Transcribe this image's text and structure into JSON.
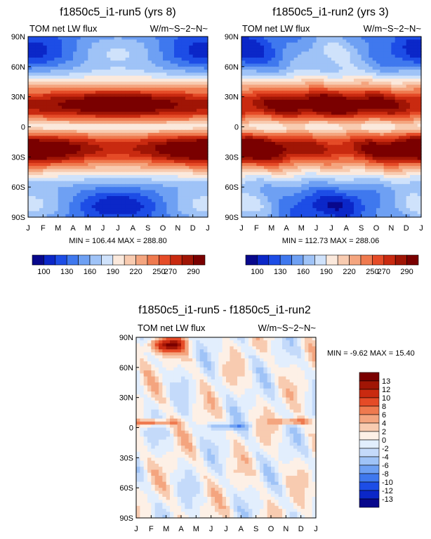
{
  "chart_data": [
    {
      "type": "heatmap",
      "title": "f1850c5_i1-run5 (yrs 8)",
      "left_label": "TOM net LW flux",
      "right_label": "W/m~S~2~N~",
      "x_ticks": [
        "J",
        "F",
        "M",
        "A",
        "M",
        "J",
        "J",
        "A",
        "S",
        "O",
        "N",
        "D",
        "J"
      ],
      "y_ticks": [
        "90N",
        "60N",
        "30N",
        "0",
        "30S",
        "60S",
        "90S"
      ],
      "y_range": [
        -90,
        90
      ],
      "stats": "MIN = 106.44 MAX = 288.80",
      "colorbar_labels": [
        "100",
        "130",
        "160",
        "190",
        "220",
        "250",
        "270",
        "290"
      ]
    },
    {
      "type": "heatmap",
      "title": "f1850c5_i1-run2 (yrs 3)",
      "left_label": "TOM net LW flux",
      "right_label": "W/m~S~2~N~",
      "x_ticks": [
        "J",
        "F",
        "M",
        "A",
        "M",
        "J",
        "J",
        "A",
        "S",
        "O",
        "N",
        "D",
        "J"
      ],
      "y_ticks": [
        "90N",
        "60N",
        "30N",
        "0",
        "30S",
        "60S",
        "90S"
      ],
      "y_range": [
        -90,
        90
      ],
      "stats": "MIN = 112.73 MAX = 288.06",
      "colorbar_labels": [
        "100",
        "130",
        "160",
        "190",
        "220",
        "250",
        "270",
        "290"
      ]
    },
    {
      "type": "heatmap",
      "title": "f1850c5_i1-run5 - f1850c5_i1-run2",
      "left_label": "TOM net LW flux",
      "right_label": "W/m~S~2~N~",
      "x_ticks": [
        "J",
        "F",
        "M",
        "A",
        "M",
        "J",
        "J",
        "A",
        "S",
        "O",
        "N",
        "D",
        "J"
      ],
      "y_ticks": [
        "90N",
        "60N",
        "30N",
        "0",
        "30S",
        "60S",
        "90S"
      ],
      "y_range": [
        -90,
        90
      ],
      "stats": "MIN =  -9.62 MAX =  15.40",
      "colorbar_labels": [
        "13",
        "12",
        "10",
        "8",
        "6",
        "4",
        "2",
        "0",
        "-2",
        "-4",
        "-6",
        "-8",
        "-10",
        "-12",
        "-13"
      ]
    }
  ],
  "colors": {
    "abs_scale": [
      "#08088c",
      "#0b27c8",
      "#1d4de6",
      "#3f78ee",
      "#6ea0f3",
      "#9fc3f7",
      "#cfe2fb",
      "#fbe9dc",
      "#f8cbb0",
      "#f4a57f",
      "#ef7a4f",
      "#e54b27",
      "#c92a10",
      "#a01505",
      "#7a0000"
    ],
    "diff_scale": [
      "#08088c",
      "#0b27c8",
      "#1d4de6",
      "#3f78ee",
      "#6ea0f3",
      "#9fc3f7",
      "#c4dafa",
      "#e2eefd",
      "#fdf0e6",
      "#f8cbb0",
      "#f4a57f",
      "#ef7a4f",
      "#e54b27",
      "#c92a10",
      "#a01505",
      "#7a0000"
    ]
  }
}
